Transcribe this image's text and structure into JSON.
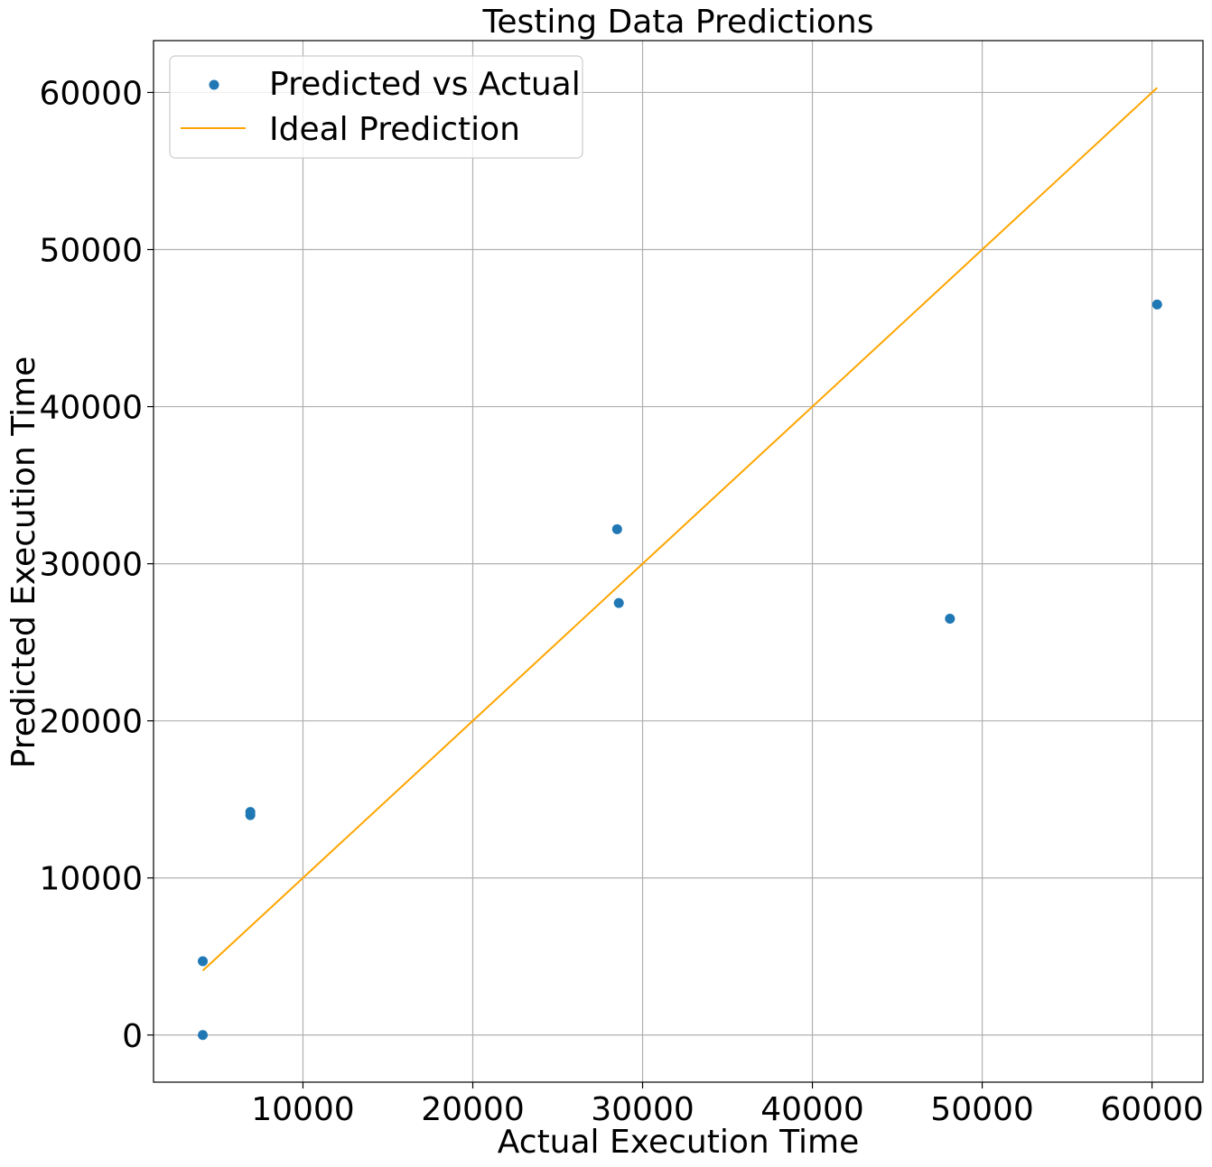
{
  "chart_data": {
    "type": "scatter",
    "title": "Testing Data Predictions",
    "xlabel": "Actual Execution Time",
    "ylabel": "Predicted Execution Time",
    "xlim": [
      1200,
      63000
    ],
    "ylim": [
      -3000,
      63300
    ],
    "xticks": [
      10000,
      20000,
      30000,
      40000,
      50000,
      60000
    ],
    "yticks": [
      0,
      10000,
      20000,
      30000,
      40000,
      50000,
      60000
    ],
    "grid": true,
    "legend_position": "top-left",
    "series": [
      {
        "name": "Predicted vs Actual",
        "kind": "scatter",
        "color": "#1f77b4",
        "points": [
          {
            "x": 4100,
            "y": 0
          },
          {
            "x": 4100,
            "y": 4700
          },
          {
            "x": 6900,
            "y": 14000
          },
          {
            "x": 6900,
            "y": 14200
          },
          {
            "x": 28500,
            "y": 32200
          },
          {
            "x": 28600,
            "y": 27500
          },
          {
            "x": 48100,
            "y": 26500
          },
          {
            "x": 60300,
            "y": 46500
          }
        ]
      },
      {
        "name": "Ideal Prediction",
        "kind": "line",
        "color": "#ffa500",
        "points": [
          {
            "x": 4100,
            "y": 4100
          },
          {
            "x": 60300,
            "y": 60300
          }
        ]
      }
    ]
  }
}
